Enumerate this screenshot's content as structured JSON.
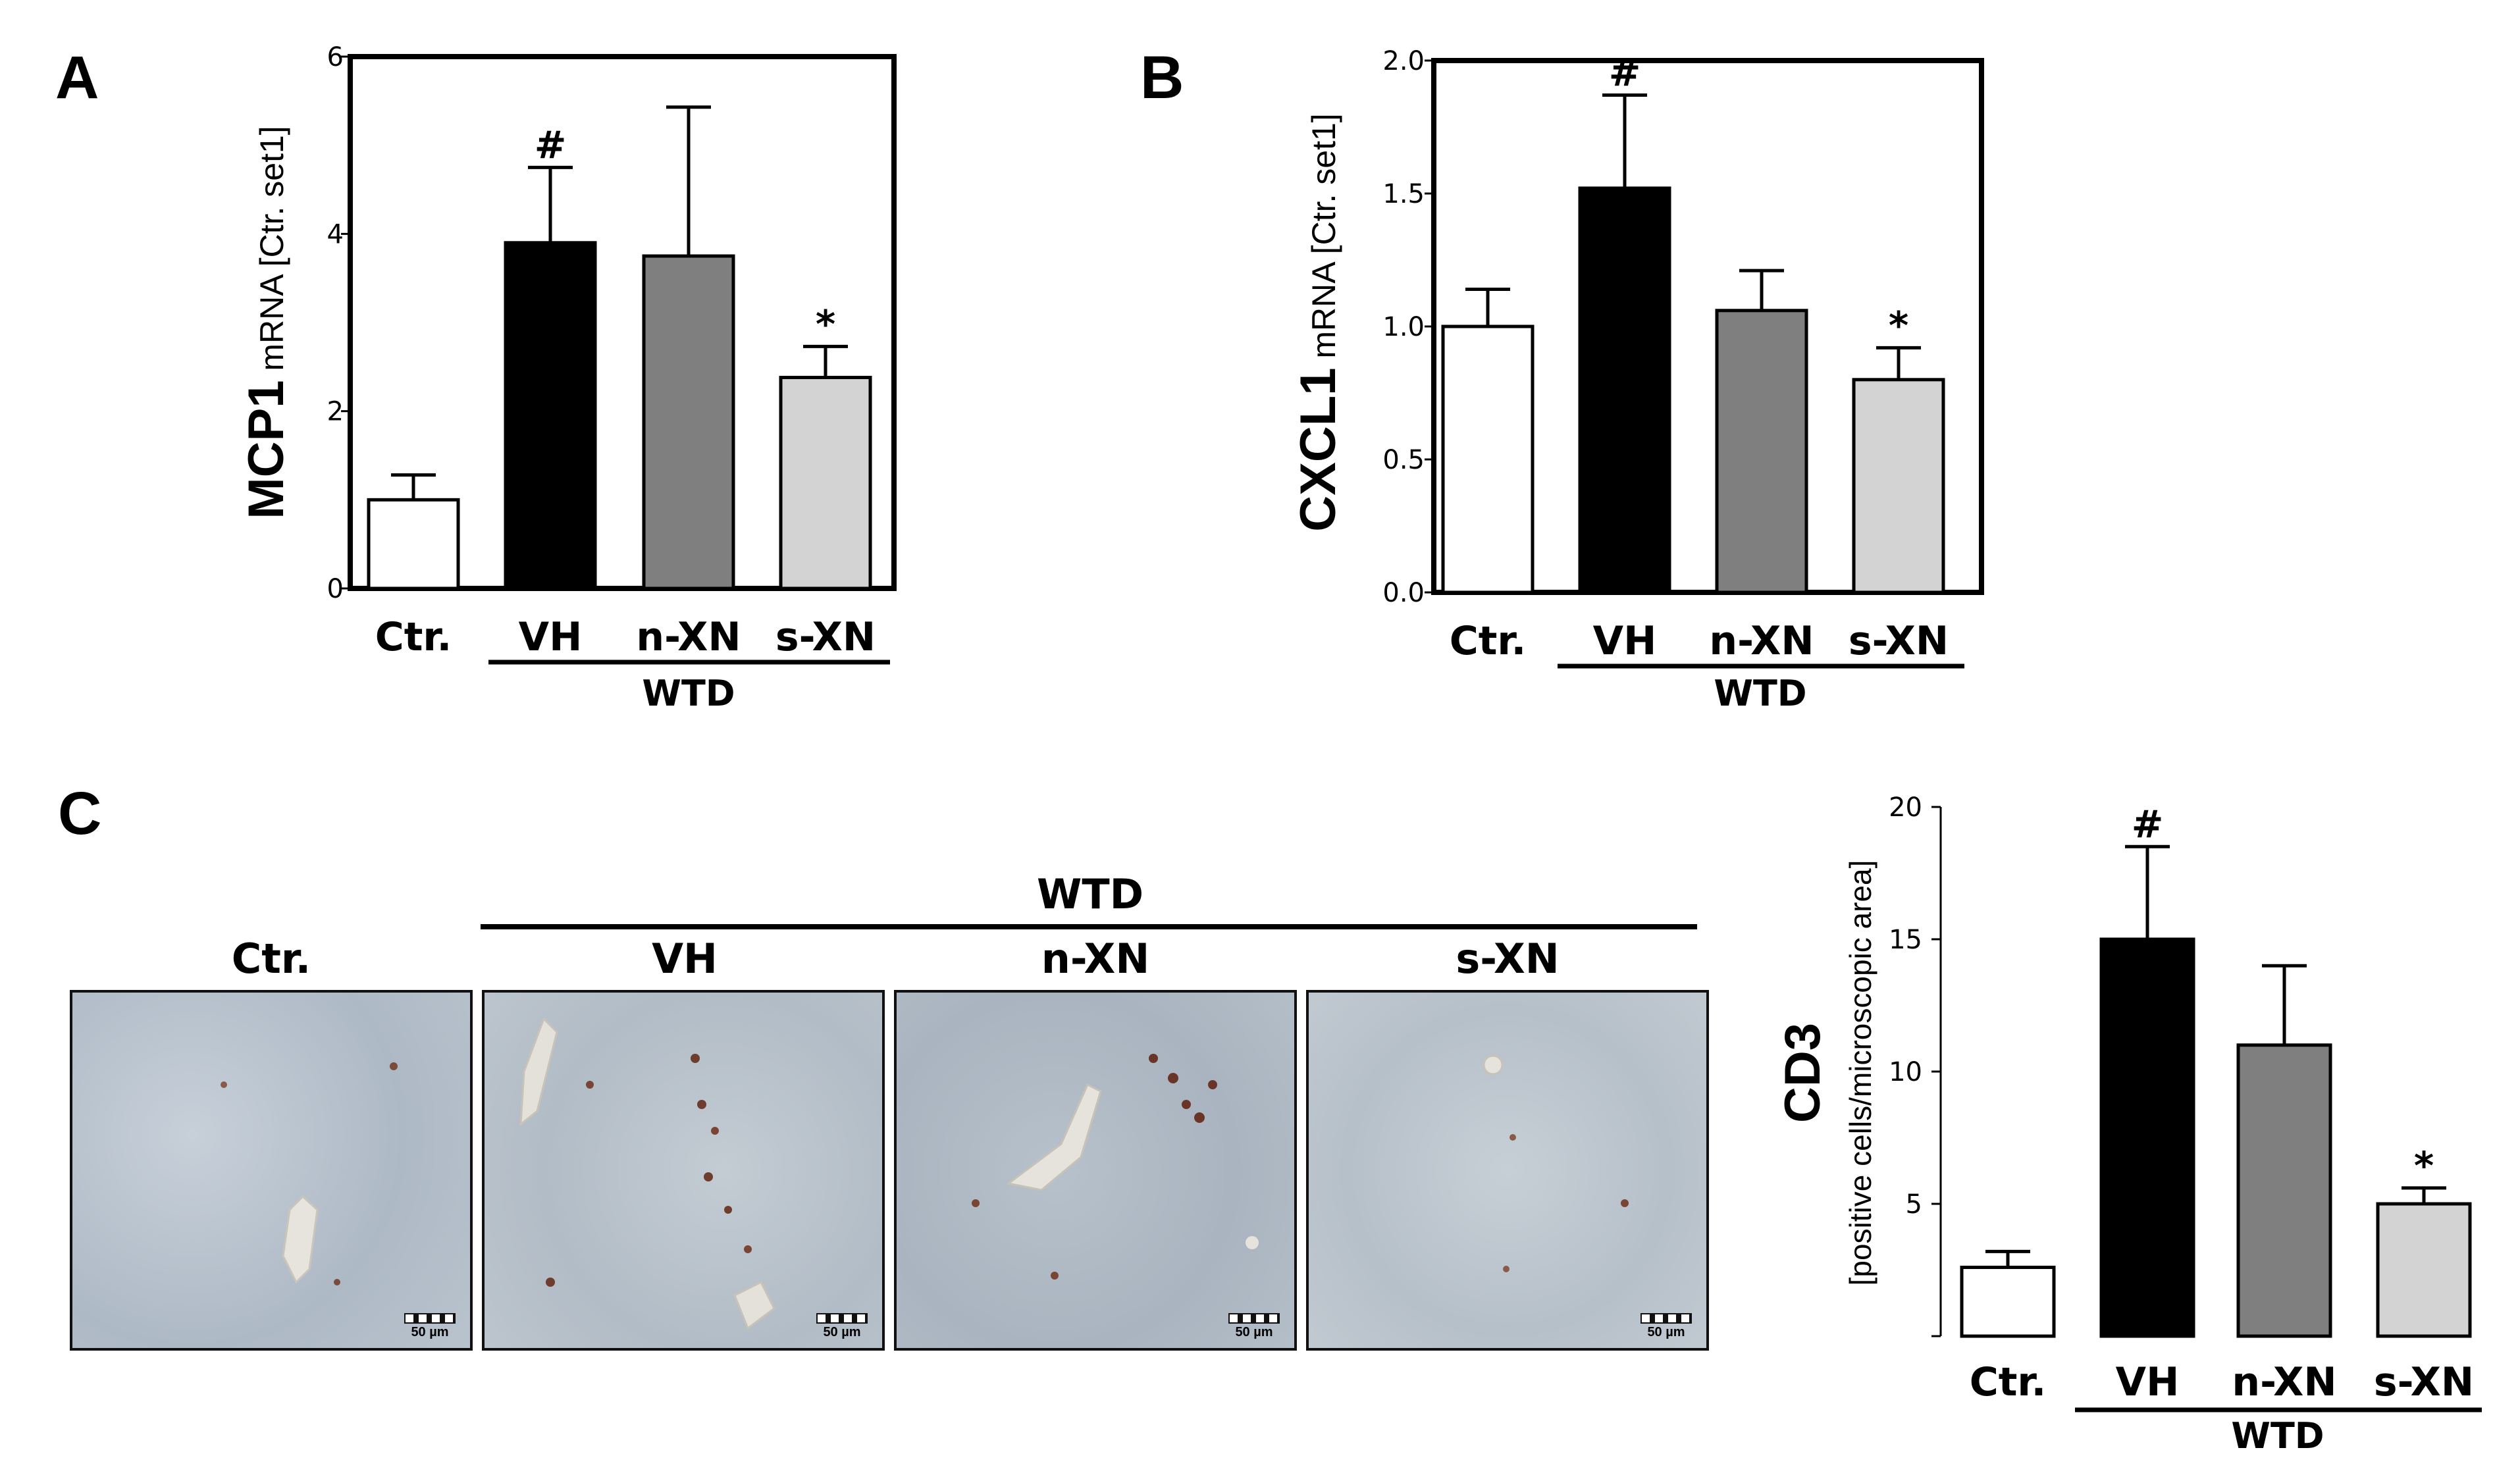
{
  "panels": {
    "A": "A",
    "B": "B",
    "C": "C"
  },
  "group_label": "WTD",
  "colors": {
    "ctr": "#ffffff",
    "vh": "#000000",
    "nxn": "#7f7f7f",
    "sxn": "#d3d3d3"
  },
  "chart_data": [
    {
      "id": "A",
      "type": "bar",
      "categories": [
        "Ctr.",
        "VH",
        "n-XN",
        "s-XN"
      ],
      "values": [
        1.0,
        3.9,
        3.75,
        2.38
      ],
      "errors": [
        0.28,
        0.85,
        1.68,
        0.35
      ],
      "annotations": [
        "",
        "#",
        "",
        "*"
      ],
      "ylabel_bold": "MCP1",
      "ylabel_rest": " mRNA [Ctr. set1]",
      "ylim": [
        0,
        6
      ],
      "yticks": [
        0,
        2,
        4,
        6
      ],
      "ytick_labels": [
        "0",
        "2",
        "4",
        "6"
      ],
      "group_label": "WTD"
    },
    {
      "id": "B",
      "type": "bar",
      "categories": [
        "Ctr.",
        "VH",
        "n-XN",
        "s-XN"
      ],
      "values": [
        1.0,
        1.52,
        1.06,
        0.8
      ],
      "errors": [
        0.14,
        0.35,
        0.15,
        0.12
      ],
      "annotations": [
        "",
        "#",
        "",
        "*"
      ],
      "ylabel_bold": "CXCL1",
      "ylabel_rest": " mRNA [Ctr. set1]",
      "ylim": [
        0,
        2.0
      ],
      "yticks": [
        0,
        0.5,
        1.0,
        1.5,
        2.0
      ],
      "ytick_labels": [
        "0.0",
        "0.5",
        "1.0",
        "1.5",
        "2.0"
      ],
      "group_label": "WTD"
    },
    {
      "id": "C",
      "type": "bar",
      "categories": [
        "Ctr.",
        "VH",
        "n-XN",
        "s-XN"
      ],
      "values": [
        2.6,
        15.0,
        11.0,
        5.0
      ],
      "errors": [
        0.6,
        3.5,
        3.0,
        0.6
      ],
      "annotations": [
        "",
        "#",
        "",
        "*"
      ],
      "ylabel_bold": "CD3",
      "ylabel_rest": "[positive cells/microscopic area]",
      "ylim": [
        0,
        20
      ],
      "yticks": [
        5,
        10,
        15,
        20
      ],
      "ytick_labels": [
        "5",
        "10",
        "15",
        "20"
      ],
      "group_label": "WTD"
    }
  ],
  "micrographs": {
    "labels": [
      "Ctr.",
      "VH",
      "n-XN",
      "s-XN"
    ],
    "scale": "50 µm"
  }
}
